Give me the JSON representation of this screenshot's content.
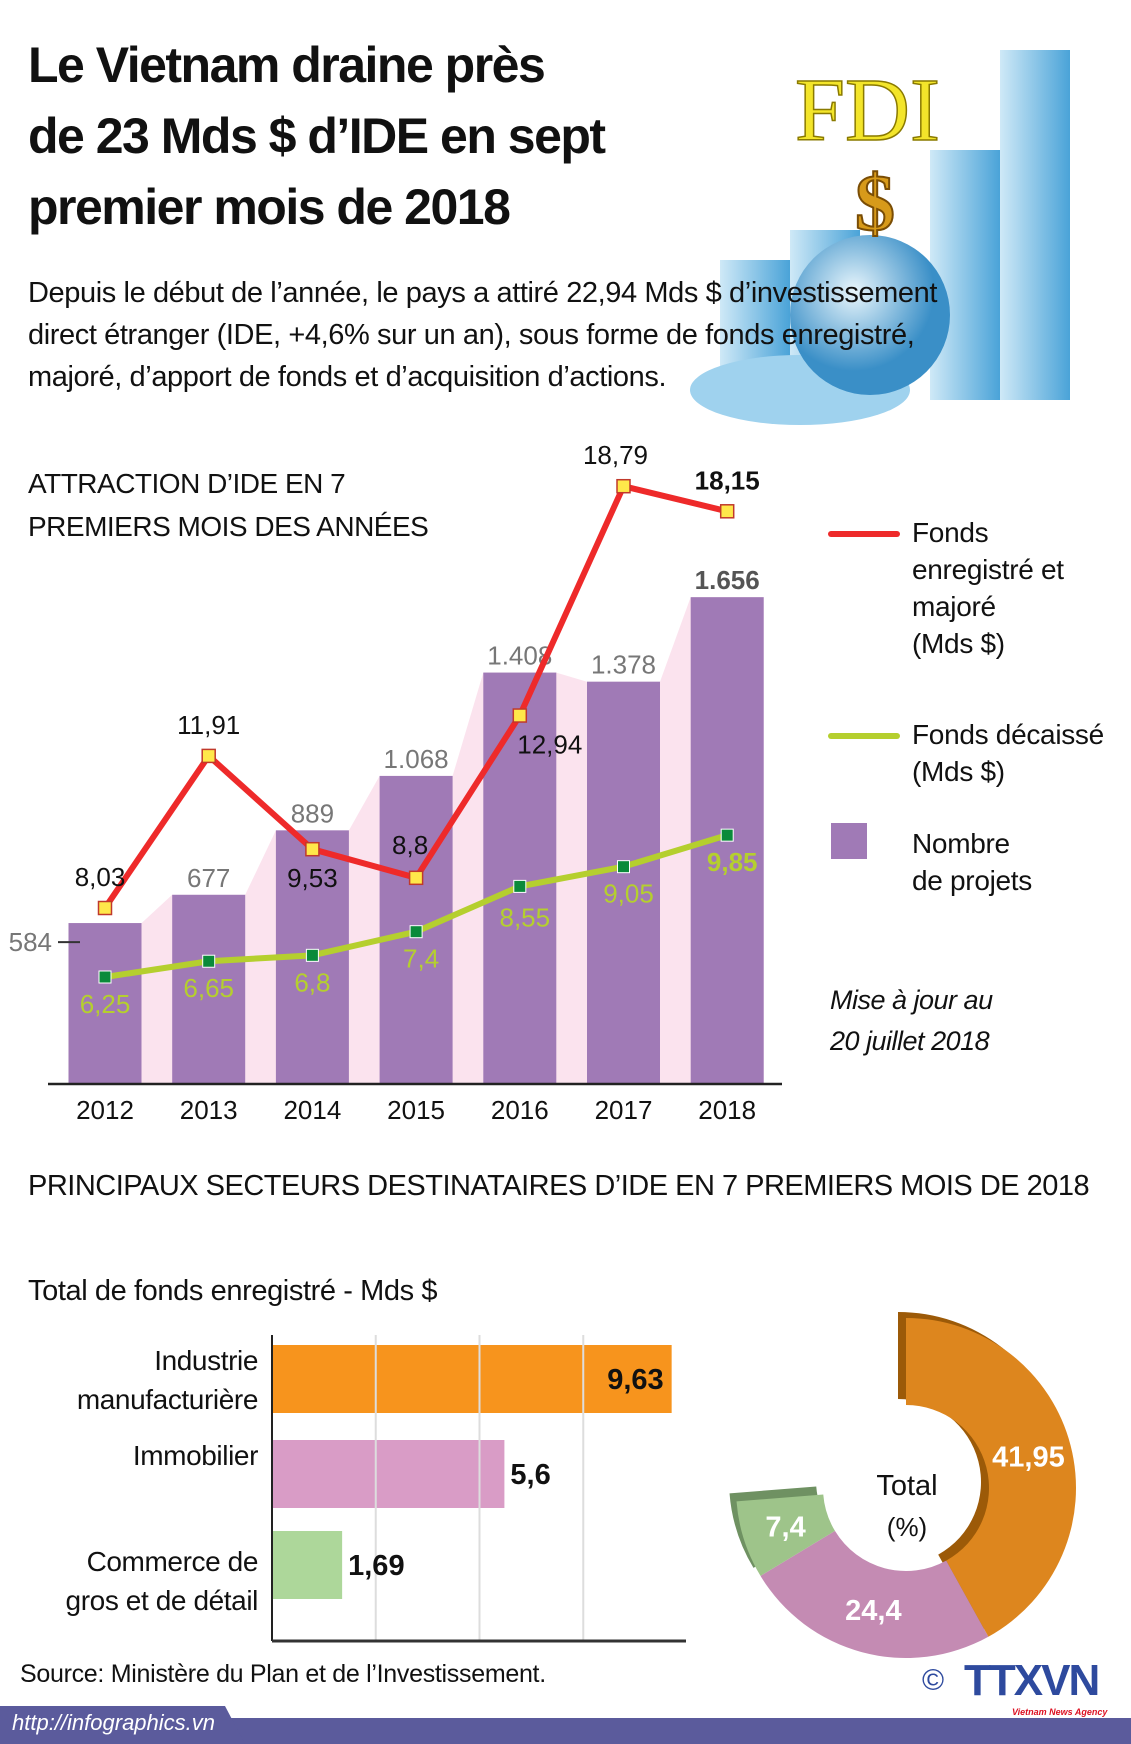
{
  "header": {
    "title_lines": [
      "Le Vietnam draine près",
      "de 23 Mds $ d’IDE en sept",
      "premier mois de 2018"
    ],
    "illustration_text": "FDI",
    "illustration_symbol": "$"
  },
  "intro": "Depuis le début de l’année, le pays a attiré 22,94 Mds $ d’investissement direct étranger (IDE, +4,6% sur un an), sous forme de fonds enregistré, majoré, d’apport de fonds et d’acquisition d’actions.",
  "chart_data": [
    {
      "type": "bar+line",
      "title_lines": [
        "ATTRACTION D’IDE EN 7",
        "PREMIERS MOIS DES ANNÉES"
      ],
      "categories": [
        "2012",
        "2013",
        "2014",
        "2015",
        "2016",
        "2017",
        "2018"
      ],
      "series": [
        {
          "name": "Nombre de projets",
          "kind": "bar",
          "color": "#a07ab6",
          "values": [
            584,
            677,
            889,
            1068,
            1408,
            1378,
            1656
          ],
          "labels": [
            "584",
            "677",
            "889",
            "1.068",
            "1.408",
            "1.378",
            "1.656"
          ]
        },
        {
          "name": "Fonds enregistré et majoré (Mds $)",
          "kind": "line",
          "color": "#ee2a2a",
          "marker_color": "#ffe84a",
          "values": [
            8.03,
            11.91,
            9.53,
            8.8,
            12.94,
            18.79,
            18.15
          ],
          "labels": [
            "8,03",
            "11,91",
            "9,53",
            "8,8",
            "12,94",
            "18,79",
            "18,15"
          ]
        },
        {
          "name": "Fonds décaissé (Mds $)",
          "kind": "line",
          "color": "#b5cf2e",
          "marker_color": "#0a8a3a",
          "values": [
            6.25,
            6.65,
            6.8,
            7.4,
            8.55,
            9.05,
            9.85
          ],
          "labels": [
            "6,25",
            "6,65",
            "6,8",
            "7,4",
            "8,55",
            "9,05",
            "9,85"
          ]
        }
      ],
      "legend": [
        {
          "label_lines": [
            "Fonds",
            "enregistré et",
            "majoré",
            "(Mds $)"
          ],
          "color": "#ee2a2a",
          "marker": "line"
        },
        {
          "label_lines": [
            "Fonds décaissé",
            "(Mds $)"
          ],
          "color": "#b5cf2e",
          "marker": "line"
        },
        {
          "label_lines": [
            "Nombre",
            "de projets"
          ],
          "color": "#a07ab6",
          "marker": "square"
        }
      ],
      "legend_position": "right",
      "note_lines": [
        "Mise à jour au",
        "20 juillet 2018"
      ]
    },
    {
      "type": "bar",
      "orientation": "horizontal",
      "title": "PRINCIPAUX SECTEURS DESTINATAIRES D’IDE EN 7 PREMIERS MOIS DE 2018",
      "subtitle": "Total de fonds enregistré - Mds $",
      "categories": [
        [
          "Industrie",
          "manufacturière"
        ],
        [
          "Immobilier"
        ],
        [
          "Commerce de",
          "gros et de détail"
        ]
      ],
      "values": [
        9.63,
        5.6,
        1.69
      ],
      "labels": [
        "9,63",
        "5,6",
        "1,69"
      ],
      "colors": [
        "#f7941d",
        "#d99cc6",
        "#add79a"
      ],
      "grid": true,
      "xlim": [
        0,
        10
      ]
    },
    {
      "type": "pie",
      "donut": true,
      "center_label_lines": [
        "Total",
        "(%)"
      ],
      "values": [
        41.95,
        24.4,
        7.4
      ],
      "labels": [
        "41,95",
        "24,4",
        "7,4"
      ],
      "colors": [
        "#dd861e",
        "#c48bb3",
        "#9ec48a"
      ]
    }
  ],
  "source": "Source: Ministère du Plan et de l’Investissement.",
  "footer": {
    "url": "http://infographics.vn",
    "logo": "TTXVN",
    "logo_sub": "Vietnam News Agency",
    "copyright": "©",
    "bar_color": "#5b5b9c"
  }
}
